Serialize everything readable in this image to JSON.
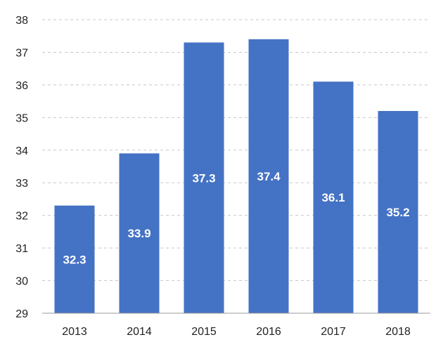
{
  "chart_data": {
    "type": "bar",
    "categories": [
      "2013",
      "2014",
      "2015",
      "2016",
      "2017",
      "2018"
    ],
    "values": [
      32.3,
      33.9,
      37.3,
      37.4,
      36.1,
      35.2
    ],
    "data_labels": [
      "32.3",
      "33.9",
      "37.3",
      "37.4",
      "36.1",
      "35.2"
    ],
    "y_ticks": [
      "29",
      "30",
      "31",
      "32",
      "33",
      "34",
      "35",
      "36",
      "37",
      "38"
    ],
    "title": "",
    "xlabel": "",
    "ylabel": "",
    "ylim": [
      29,
      38
    ],
    "grid": true,
    "bar_color": "#4472c4",
    "grid_color": "#c8c8c8"
  }
}
